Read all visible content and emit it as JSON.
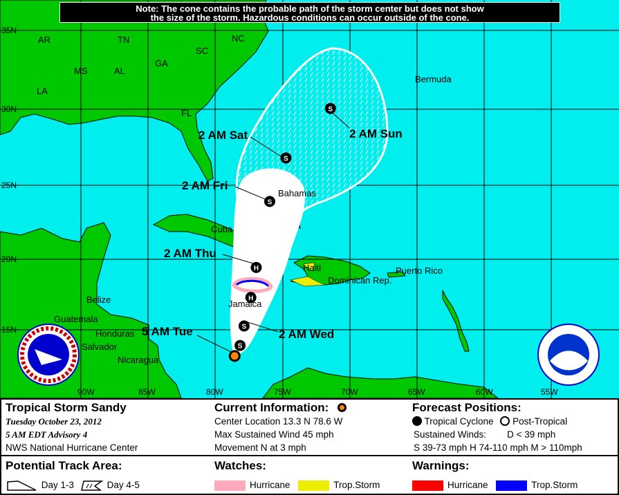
{
  "note": {
    "line1": "Note: The cone contains the probable path of the storm center but does not show",
    "line2": "the size of the storm. Hazardous conditions can occur outside of the cone."
  },
  "map": {
    "colors": {
      "water": "#00eeee",
      "land": "#00c800",
      "cone": "#ffffff",
      "watch_hurricane": "#ffaabb",
      "watch_ts": "#eeee00",
      "warning_hurricane": "#ff0000",
      "warning_ts": "#0000ff",
      "current_position": "#ff8800"
    },
    "lat_labels": [
      "35N",
      "30N",
      "25N",
      "20N",
      "15N"
    ],
    "lon_labels": [
      "90W",
      "85W",
      "80W",
      "75W",
      "70W",
      "65W",
      "60W",
      "55W"
    ],
    "places": [
      "AR",
      "TN",
      "NC",
      "SC",
      "GA",
      "MS",
      "AL",
      "LA",
      "FL",
      "Bermuda",
      "Bahamas",
      "Cuba",
      "Haiti",
      "Dominican Rep.",
      "Puerto Rico",
      "Jamaica",
      "Belize",
      "Guatemala",
      "Honduras",
      "Salvador",
      "Nicaragua"
    ],
    "track": [
      {
        "time": "5 AM Tue",
        "lat": 13.3,
        "lon": 78.6,
        "type": "current"
      },
      {
        "time": "",
        "lat": 14.0,
        "lon": 78.2,
        "symbol": "S"
      },
      {
        "time": "2 AM Wed",
        "lat": 15.3,
        "lon": 77.9,
        "symbol": "S"
      },
      {
        "time": "",
        "lat": 17.2,
        "lon": 77.4,
        "symbol": "H"
      },
      {
        "time": "2 AM Thu",
        "lat": 19.2,
        "lon": 77.0,
        "symbol": "H"
      },
      {
        "time": "2 AM Fri",
        "lat": 23.6,
        "lon": 76.0,
        "symbol": "S"
      },
      {
        "time": "2 AM Sat",
        "lat": 26.5,
        "lon": 74.8,
        "symbol": "S"
      },
      {
        "time": "2 AM Sun",
        "lat": 29.8,
        "lon": 71.5,
        "symbol": "S"
      }
    ]
  },
  "legend": {
    "storm_name": "Tropical Storm Sandy",
    "date": "Tuesday  October 23, 2012",
    "advisory": "5 AM EDT Advisory 4",
    "center": "NWS National Hurricane Center",
    "current_title": "Current Information:",
    "center_location": "Center Location 13.3 N  78.6 W",
    "max_wind": "Max Sustained Wind  45 mph",
    "movement": "Movement N at  3 mph",
    "forecast_title": "Forecast Positions:",
    "tropical_cyclone": "Tropical Cyclone",
    "post_tropical": "Post-Tropical",
    "sustained_winds": "Sustained Winds:",
    "d_range": "D  < 39 mph",
    "shm_ranges": "S  39-73 mph  H  74-110 mph  M  > 110mph",
    "track_title": "Potential Track Area:",
    "day13": "Day 1-3",
    "day45": "Day 4-5",
    "watches_title": "Watches:",
    "warnings_title": "Warnings:",
    "hurricane": "Hurricane",
    "trop_storm": "Trop.Storm"
  }
}
